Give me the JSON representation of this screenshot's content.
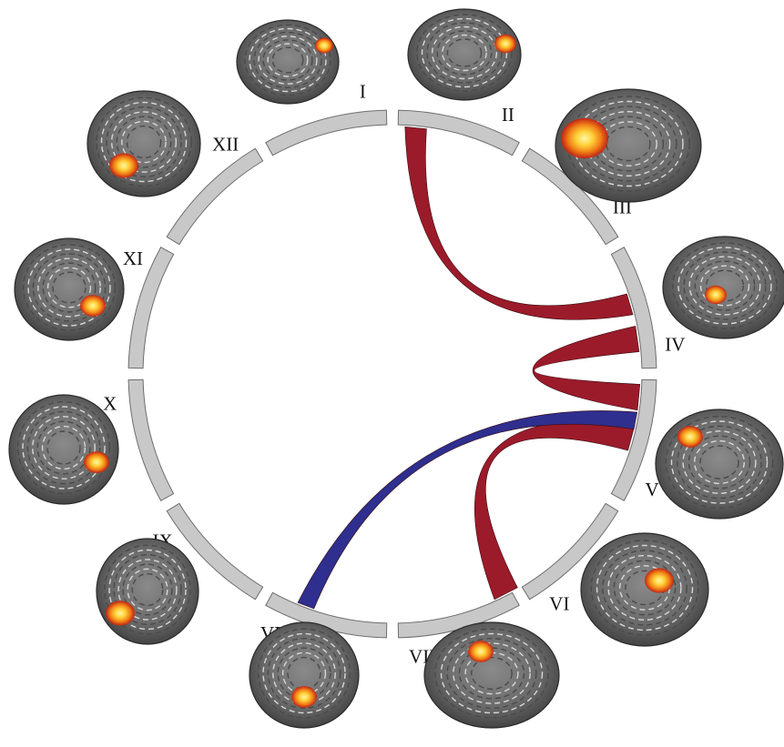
{
  "diagram": {
    "type": "chord-diagram",
    "segments": [
      {
        "id": "I",
        "label": "I",
        "thumb": "sagittal-brain-slice"
      },
      {
        "id": "II",
        "label": "II",
        "thumb": "sagittal-brain-slice"
      },
      {
        "id": "III",
        "label": "III",
        "thumb": "midline-sagittal-brain-slice"
      },
      {
        "id": "IV",
        "label": "IV",
        "thumb": "sagittal-brain-slice"
      },
      {
        "id": "V",
        "label": "V",
        "thumb": "midline-sagittal-brain-slice"
      },
      {
        "id": "VI",
        "label": "VI",
        "thumb": "midline-sagittal-brain-slice"
      },
      {
        "id": "VII",
        "label": "VII",
        "thumb": "midline-sagittal-brain-slice"
      },
      {
        "id": "VIII",
        "label": "VIII",
        "thumb": "coronal-brain-slice"
      },
      {
        "id": "IX",
        "label": "IX",
        "thumb": "coronal-brain-slice"
      },
      {
        "id": "X",
        "label": "X",
        "thumb": "coronal-brain-slice"
      },
      {
        "id": "XI",
        "label": "XI",
        "thumb": "coronal-brain-slice"
      },
      {
        "id": "XII",
        "label": "XII",
        "thumb": "coronal-brain-slice"
      }
    ],
    "connections": [
      {
        "from": "II",
        "to": "IV",
        "color": "#9b1b2a"
      },
      {
        "from": "IV",
        "to": "V",
        "color": "#9b1b2a"
      },
      {
        "from": "V",
        "to": "VII",
        "color": "#9b1b2a"
      },
      {
        "from": "V",
        "to": "VIII",
        "color": "#2e2f8e"
      }
    ],
    "colors": {
      "segment_fill": "#c8c8c8",
      "positive": "#9b1b2a",
      "negative": "#2e2f8e",
      "activation_hot": "#ffe866",
      "activation_warm": "#f08a1a",
      "activation_edge": "#c81e0e"
    }
  }
}
